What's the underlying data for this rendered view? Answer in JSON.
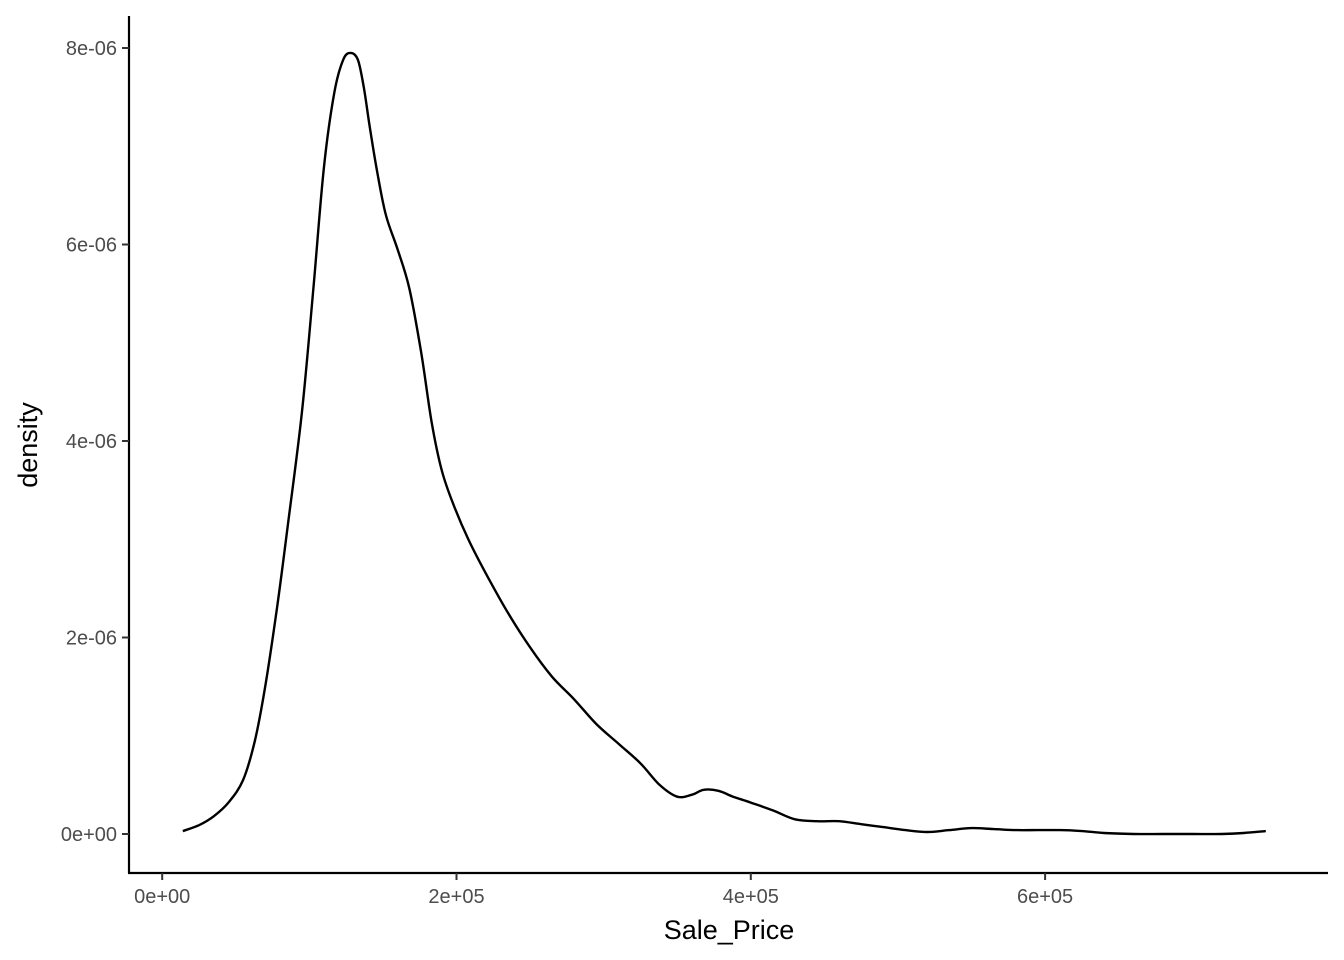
{
  "chart_data": {
    "type": "line",
    "title": "",
    "xlabel": "Sale_Price",
    "ylabel": "density",
    "xlim": [
      -10000,
      785000
    ],
    "ylim": [
      -4e-07,
      8.3e-06
    ],
    "x_ticks": [
      {
        "value": 0,
        "label": "0e+00"
      },
      {
        "value": 200000,
        "label": "2e+05"
      },
      {
        "value": 400000,
        "label": "4e+05"
      },
      {
        "value": 600000,
        "label": "6e+05"
      }
    ],
    "y_ticks": [
      {
        "value": 0,
        "label": "0e+00"
      },
      {
        "value": 2e-06,
        "label": "2e-06"
      },
      {
        "value": 4e-06,
        "label": "4e-06"
      },
      {
        "value": 6e-06,
        "label": "6e-06"
      },
      {
        "value": 8e-06,
        "label": "8e-06"
      }
    ],
    "grid": false,
    "legend": "none",
    "series": [
      {
        "x": [
          14000,
          25000,
          35000,
          45000,
          55000,
          63000,
          70000,
          78000,
          85000,
          95000,
          103000,
          110000,
          117000,
          123000,
          128000,
          133000,
          137000,
          141000,
          146000,
          152000,
          160000,
          168000,
          176000,
          183000,
          190000,
          198000,
          208000,
          220000,
          235000,
          250000,
          265000,
          280000,
          295000,
          310000,
          325000,
          338000,
          350000,
          360000,
          368000,
          378000,
          388000,
          400000,
          415000,
          430000,
          445000,
          460000,
          475000,
          490000,
          505000,
          520000,
          535000,
          550000,
          565000,
          580000,
          595000,
          610000,
          625000,
          640000,
          660000,
          680000,
          700000,
          720000,
          735000,
          750000
        ],
        "y": [
          3e-08,
          9e-08,
          1.8e-07,
          3.2e-07,
          5.5e-07,
          9.5e-07,
          1.5e-06,
          2.3e-06,
          3.1e-06,
          4.3e-06,
          5.6e-06,
          6.8e-06,
          7.55e-06,
          7.88e-06,
          7.95e-06,
          7.88e-06,
          7.6e-06,
          7.2e-06,
          6.75e-06,
          6.3e-06,
          5.95e-06,
          5.55e-06,
          4.9e-06,
          4.2e-06,
          3.7e-06,
          3.35e-06,
          3e-06,
          2.65e-06,
          2.25e-06,
          1.9e-06,
          1.6e-06,
          1.37e-06,
          1.12e-06,
          9.2e-07,
          7.2e-07,
          5e-07,
          3.8e-07,
          4e-07,
          4.5e-07,
          4.4e-07,
          3.8e-07,
          3.2e-07,
          2.4e-07,
          1.5e-07,
          1.3e-07,
          1.3e-07,
          1e-07,
          7e-08,
          4e-08,
          2e-08,
          4e-08,
          6e-08,
          5e-08,
          4e-08,
          4e-08,
          4e-08,
          3e-08,
          1e-08,
          0.0,
          0.0,
          0.0,
          0.0,
          1e-08,
          3e-08
        ]
      }
    ]
  }
}
